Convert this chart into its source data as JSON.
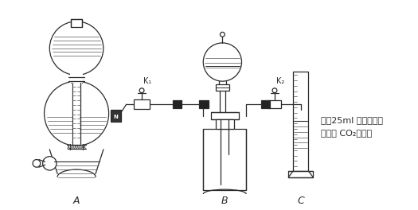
{
  "bg_color": "#ffffff",
  "line_color": "#2a2a2a",
  "label_A": "A",
  "label_B": "B",
  "label_C": "C",
  "label_K1": "K₁",
  "label_K2": "K₂",
  "annotation_line1": "装有25ml 液体（该液",
  "annotation_line2": "体不与 CO₂反应）",
  "fig_width": 5.25,
  "fig_height": 2.64,
  "dpi": 100
}
